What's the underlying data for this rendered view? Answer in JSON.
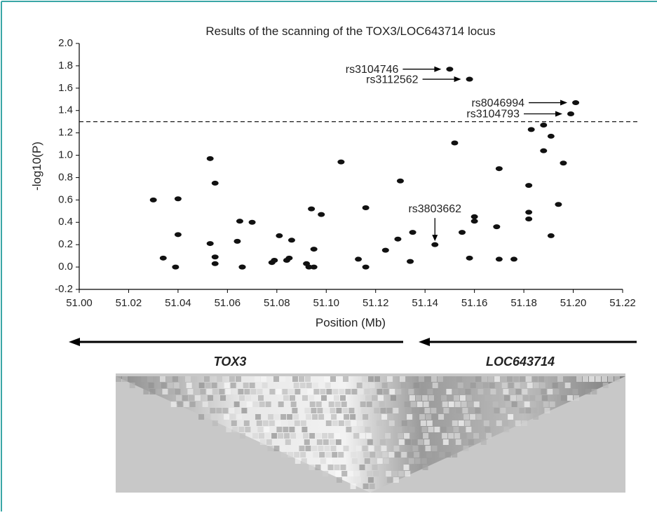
{
  "chart_data": {
    "type": "scatter",
    "title": "Results of the scanning of the TOX3/LOC643714 locus",
    "x_label": "Position (Mb)",
    "y_label": "-log10(P)",
    "xlim": [
      51.0,
      51.22
    ],
    "ylim": [
      -0.2,
      2.0
    ],
    "xticks": [
      {
        "value": 51.0,
        "label": "51.00"
      },
      51.02,
      51.04,
      51.06,
      51.08,
      {
        "value": 51.1,
        "label": "51.10"
      },
      51.12,
      51.14,
      51.16,
      51.18,
      {
        "value": 51.2,
        "label": "51.20"
      },
      51.22
    ],
    "yticks": [
      -0.2,
      {
        "value": 0,
        "label": "0.0"
      },
      0.2,
      0.4,
      0.6,
      0.8,
      {
        "value": 1,
        "label": "1.0"
      },
      1.2,
      1.4,
      1.6,
      1.8,
      {
        "value": 2,
        "label": "2.0"
      }
    ],
    "threshold": 1.3,
    "color": "#111111",
    "x": [
      51.03,
      51.034,
      51.039,
      51.04,
      51.04,
      51.053,
      51.053,
      51.055,
      51.055,
      51.055,
      51.064,
      51.065,
      51.066,
      51.066,
      51.07,
      51.078,
      51.079,
      51.081,
      51.084,
      51.085,
      51.086,
      51.092,
      51.093,
      51.094,
      51.095,
      51.095,
      51.098,
      51.106,
      51.113,
      51.116,
      51.116,
      51.124,
      51.129,
      51.13,
      51.134,
      51.135,
      51.144,
      51.152,
      51.15,
      51.158,
      51.155,
      51.158,
      51.16,
      51.16,
      51.17,
      51.169,
      51.17,
      51.176,
      51.182,
      51.182,
      51.182,
      51.183,
      51.188,
      51.188,
      51.191,
      51.191,
      51.194,
      51.196,
      51.199,
      51.201
    ],
    "values": [
      0.6,
      0.08,
      0.0,
      0.29,
      0.61,
      0.97,
      0.21,
      0.75,
      0.03,
      0.09,
      0.23,
      0.41,
      0.0,
      0.0,
      0.4,
      0.04,
      0.06,
      0.28,
      0.06,
      0.08,
      0.24,
      0.03,
      0.0,
      0.52,
      0.16,
      0.0,
      0.47,
      0.94,
      0.07,
      0.0,
      0.53,
      0.15,
      0.25,
      0.77,
      0.05,
      0.31,
      0.2,
      1.11,
      1.77,
      1.68,
      0.31,
      0.08,
      0.45,
      0.41,
      0.88,
      0.36,
      0.07,
      0.07,
      0.73,
      0.43,
      0.49,
      1.23,
      1.04,
      1.27,
      0.28,
      1.17,
      0.56,
      0.93,
      1.37,
      1.47
    ],
    "annotations": [
      {
        "text": "rs3104746",
        "point": 38
      },
      {
        "text": "rs3112562",
        "point": 39
      },
      {
        "text": "rs8046994",
        "point": 59
      },
      {
        "text": "rs3104793",
        "point": 58
      },
      {
        "text": "rs3803662",
        "point": 36
      }
    ],
    "genes": [
      "TOX3",
      "LOC643714"
    ]
  }
}
